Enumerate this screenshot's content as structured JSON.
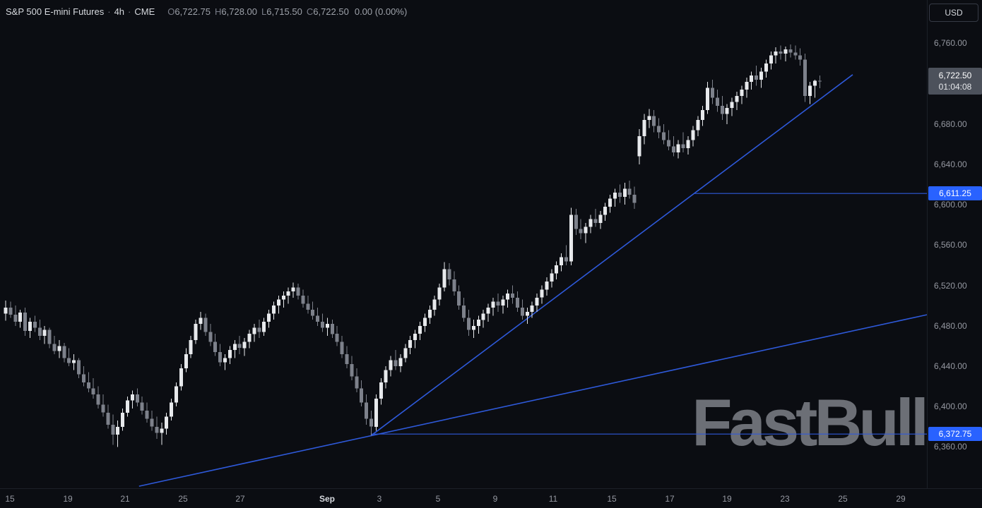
{
  "header": {
    "symbol": "S&P 500 E-mini Futures",
    "separator": "·",
    "interval": "4h",
    "exchange": "CME",
    "ohlc": {
      "o_label": "O",
      "o": "6,722.75",
      "h_label": "H",
      "h": "6,728.00",
      "l_label": "L",
      "l": "6,715.50",
      "c_label": "C",
      "c": "6,722.50",
      "change": "0.00 (0.00%)"
    },
    "currency_button": "USD"
  },
  "watermark": "FastBull",
  "chart_data": {
    "type": "candlestick",
    "title": "S&P 500 E-mini Futures · 4h · CME",
    "last_price": "6,722.50",
    "countdown": "01:04:08",
    "y_domain": [
      6319,
      6803
    ],
    "x_layout": {
      "offset": 8,
      "step": 6.9,
      "body_width": 5
    },
    "price_ticks": [
      6760,
      6720,
      6680,
      6640,
      6600,
      6560,
      6520,
      6480,
      6440,
      6400,
      6360
    ],
    "time_ticks": [
      {
        "label": "15",
        "x": 0.0107
      },
      {
        "label": "19",
        "x": 0.0732
      },
      {
        "label": "21",
        "x": 0.1349
      },
      {
        "label": "25",
        "x": 0.1974
      },
      {
        "label": "27",
        "x": 0.2591
      },
      {
        "label": "Sep",
        "x": 0.3529,
        "month": true
      },
      {
        "label": "3",
        "x": 0.4093
      },
      {
        "label": "5",
        "x": 0.4726
      },
      {
        "label": "9",
        "x": 0.5343
      },
      {
        "label": "11",
        "x": 0.5968
      },
      {
        "label": "15",
        "x": 0.6601
      },
      {
        "label": "17",
        "x": 0.7226
      },
      {
        "label": "19",
        "x": 0.7843
      },
      {
        "label": "23",
        "x": 0.8468
      },
      {
        "label": "25",
        "x": 0.9093
      },
      {
        "label": "29",
        "x": 0.9718
      }
    ],
    "price_labels": [
      {
        "name": "last-price-label",
        "style": "gray",
        "text": "6,722.50",
        "sub": "01:04:08",
        "price": 6722.5
      },
      {
        "name": "price-line-label-6611",
        "style": "blue",
        "text": "6,611.25",
        "price": 6611.25
      },
      {
        "name": "price-line-label-6372",
        "style": "blue",
        "text": "6,372.75",
        "price": 6372.75
      }
    ],
    "drawings": [
      {
        "name": "trendline-shallow",
        "x1": 0.15,
        "p1": 6321,
        "x2": 1.0,
        "p2": 6491
      },
      {
        "name": "trendline-steep",
        "x1": 0.4,
        "p1": 6371,
        "x2": 0.92,
        "p2": 6729
      },
      {
        "name": "horizontal-line-6611",
        "x1": 0.749,
        "p1": 6611.25,
        "x2": 1.0,
        "p2": 6611.25
      },
      {
        "name": "horizontal-line-6372",
        "x1": 0.4,
        "p1": 6372.75,
        "x2": 1.0,
        "p2": 6372.75
      }
    ],
    "colors": {
      "up": "#e7e9ec",
      "down": "#7d818b",
      "line": "#2e59d9",
      "label_blue": "#2962ff",
      "label_gray": "#4c515b",
      "background": "#0b0d12"
    },
    "candles": [
      [
        6492,
        6505,
        6485,
        6498
      ],
      [
        6498,
        6504,
        6488,
        6491
      ],
      [
        6491,
        6500,
        6480,
        6484
      ],
      [
        6484,
        6496,
        6478,
        6493
      ],
      [
        6493,
        6498,
        6470,
        6475
      ],
      [
        6475,
        6488,
        6468,
        6484
      ],
      [
        6484,
        6490,
        6474,
        6478
      ],
      [
        6478,
        6486,
        6466,
        6470
      ],
      [
        6470,
        6480,
        6462,
        6476
      ],
      [
        6476,
        6478,
        6458,
        6462
      ],
      [
        6462,
        6470,
        6452,
        6455
      ],
      [
        6455,
        6466,
        6448,
        6460
      ],
      [
        6460,
        6463,
        6444,
        6448
      ],
      [
        6448,
        6458,
        6440,
        6443
      ],
      [
        6443,
        6452,
        6436,
        6446
      ],
      [
        6446,
        6448,
        6428,
        6432
      ],
      [
        6432,
        6440,
        6420,
        6424
      ],
      [
        6424,
        6434,
        6414,
        6418
      ],
      [
        6418,
        6428,
        6408,
        6412
      ],
      [
        6412,
        6420,
        6398,
        6402
      ],
      [
        6402,
        6412,
        6390,
        6394
      ],
      [
        6394,
        6402,
        6378,
        6382
      ],
      [
        6382,
        6392,
        6362,
        6372
      ],
      [
        6372,
        6386,
        6360,
        6380
      ],
      [
        6380,
        6398,
        6376,
        6394
      ],
      [
        6394,
        6410,
        6390,
        6406
      ],
      [
        6406,
        6416,
        6398,
        6412
      ],
      [
        6412,
        6418,
        6400,
        6404
      ],
      [
        6404,
        6410,
        6392,
        6396
      ],
      [
        6396,
        6404,
        6384,
        6388
      ],
      [
        6388,
        6396,
        6376,
        6380
      ],
      [
        6380,
        6390,
        6368,
        6374
      ],
      [
        6374,
        6384,
        6362,
        6378
      ],
      [
        6378,
        6394,
        6372,
        6390
      ],
      [
        6390,
        6408,
        6386,
        6404
      ],
      [
        6404,
        6424,
        6400,
        6420
      ],
      [
        6420,
        6442,
        6416,
        6438
      ],
      [
        6438,
        6458,
        6434,
        6452
      ],
      [
        6452,
        6470,
        6448,
        6466
      ],
      [
        6466,
        6486,
        6462,
        6482
      ],
      [
        6482,
        6494,
        6476,
        6488
      ],
      [
        6488,
        6492,
        6470,
        6474
      ],
      [
        6474,
        6482,
        6460,
        6464
      ],
      [
        6464,
        6472,
        6450,
        6454
      ],
      [
        6454,
        6462,
        6440,
        6444
      ],
      [
        6444,
        6452,
        6436,
        6448
      ],
      [
        6448,
        6460,
        6442,
        6456
      ],
      [
        6456,
        6466,
        6448,
        6462
      ],
      [
        6462,
        6470,
        6452,
        6458
      ],
      [
        6458,
        6468,
        6450,
        6464
      ],
      [
        6464,
        6476,
        6458,
        6472
      ],
      [
        6472,
        6482,
        6464,
        6478
      ],
      [
        6478,
        6486,
        6468,
        6474
      ],
      [
        6474,
        6488,
        6470,
        6484
      ],
      [
        6484,
        6496,
        6478,
        6492
      ],
      [
        6492,
        6504,
        6486,
        6500
      ],
      [
        6500,
        6510,
        6492,
        6506
      ],
      [
        6506,
        6514,
        6498,
        6510
      ],
      [
        6510,
        6518,
        6502,
        6514
      ],
      [
        6514,
        6523,
        6508,
        6518
      ],
      [
        6518,
        6522,
        6506,
        6510
      ],
      [
        6510,
        6516,
        6498,
        6502
      ],
      [
        6502,
        6510,
        6492,
        6496
      ],
      [
        6496,
        6504,
        6486,
        6490
      ],
      [
        6490,
        6498,
        6480,
        6484
      ],
      [
        6484,
        6492,
        6474,
        6478
      ],
      [
        6478,
        6488,
        6470,
        6482
      ],
      [
        6482,
        6486,
        6468,
        6472
      ],
      [
        6472,
        6480,
        6460,
        6464
      ],
      [
        6464,
        6470,
        6448,
        6452
      ],
      [
        6452,
        6460,
        6438,
        6442
      ],
      [
        6442,
        6450,
        6426,
        6430
      ],
      [
        6430,
        6438,
        6414,
        6418
      ],
      [
        6418,
        6426,
        6400,
        6404
      ],
      [
        6404,
        6412,
        6382,
        6388
      ],
      [
        6388,
        6396,
        6371,
        6380
      ],
      [
        6380,
        6412,
        6376,
        6408
      ],
      [
        6408,
        6428,
        6402,
        6424
      ],
      [
        6424,
        6440,
        6418,
        6436
      ],
      [
        6436,
        6450,
        6430,
        6446
      ],
      [
        6446,
        6456,
        6436,
        6440
      ],
      [
        6440,
        6452,
        6434,
        6448
      ],
      [
        6448,
        6462,
        6444,
        6458
      ],
      [
        6458,
        6470,
        6452,
        6466
      ],
      [
        6466,
        6476,
        6458,
        6472
      ],
      [
        6472,
        6484,
        6466,
        6480
      ],
      [
        6480,
        6492,
        6474,
        6488
      ],
      [
        6488,
        6500,
        6482,
        6496
      ],
      [
        6496,
        6510,
        6490,
        6506
      ],
      [
        6506,
        6522,
        6500,
        6518
      ],
      [
        6518,
        6543,
        6514,
        6536
      ],
      [
        6536,
        6542,
        6520,
        6526
      ],
      [
        6526,
        6534,
        6510,
        6514
      ],
      [
        6514,
        6520,
        6496,
        6500
      ],
      [
        6500,
        6508,
        6484,
        6488
      ],
      [
        6488,
        6496,
        6470,
        6476
      ],
      [
        6476,
        6486,
        6468,
        6480
      ],
      [
        6480,
        6490,
        6472,
        6486
      ],
      [
        6486,
        6496,
        6478,
        6492
      ],
      [
        6492,
        6502,
        6484,
        6498
      ],
      [
        6498,
        6508,
        6490,
        6504
      ],
      [
        6504,
        6512,
        6494,
        6500
      ],
      [
        6500,
        6510,
        6492,
        6506
      ],
      [
        6506,
        6516,
        6498,
        6512
      ],
      [
        6512,
        6520,
        6502,
        6508
      ],
      [
        6508,
        6514,
        6494,
        6498
      ],
      [
        6498,
        6506,
        6486,
        6490
      ],
      [
        6490,
        6498,
        6482,
        6494
      ],
      [
        6494,
        6504,
        6488,
        6500
      ],
      [
        6500,
        6512,
        6494,
        6508
      ],
      [
        6508,
        6520,
        6502,
        6516
      ],
      [
        6516,
        6528,
        6510,
        6524
      ],
      [
        6524,
        6536,
        6518,
        6532
      ],
      [
        6532,
        6544,
        6526,
        6540
      ],
      [
        6540,
        6552,
        6534,
        6548
      ],
      [
        6548,
        6560,
        6540,
        6544
      ],
      [
        6544,
        6597,
        6540,
        6590
      ],
      [
        6590,
        6596,
        6570,
        6576
      ],
      [
        6576,
        6586,
        6566,
        6572
      ],
      [
        6572,
        6582,
        6562,
        6578
      ],
      [
        6578,
        6590,
        6572,
        6586
      ],
      [
        6586,
        6596,
        6578,
        6582
      ],
      [
        6582,
        6594,
        6576,
        6590
      ],
      [
        6590,
        6602,
        6584,
        6598
      ],
      [
        6598,
        6610,
        6592,
        6606
      ],
      [
        6606,
        6616,
        6598,
        6612
      ],
      [
        6612,
        6620,
        6602,
        6608
      ],
      [
        6608,
        6622,
        6600,
        6616
      ],
      [
        6616,
        6624,
        6606,
        6610
      ],
      [
        6610,
        6618,
        6596,
        6602
      ],
      [
        6648,
        6675,
        6640,
        6668
      ],
      [
        6668,
        6690,
        6660,
        6684
      ],
      [
        6684,
        6695,
        6676,
        6688
      ],
      [
        6688,
        6694,
        6672,
        6678
      ],
      [
        6678,
        6686,
        6666,
        6672
      ],
      [
        6672,
        6680,
        6660,
        6664
      ],
      [
        6664,
        6674,
        6654,
        6658
      ],
      [
        6658,
        6668,
        6648,
        6652
      ],
      [
        6652,
        6664,
        6646,
        6660
      ],
      [
        6660,
        6672,
        6652,
        6656
      ],
      [
        6656,
        6668,
        6650,
        6664
      ],
      [
        6664,
        6678,
        6658,
        6674
      ],
      [
        6674,
        6688,
        6668,
        6684
      ],
      [
        6684,
        6698,
        6678,
        6694
      ],
      [
        6694,
        6722,
        6690,
        6716
      ],
      [
        6716,
        6724,
        6700,
        6706
      ],
      [
        6706,
        6714,
        6692,
        6698
      ],
      [
        6698,
        6708,
        6684,
        6690
      ],
      [
        6690,
        6700,
        6680,
        6696
      ],
      [
        6696,
        6706,
        6688,
        6702
      ],
      [
        6702,
        6712,
        6694,
        6708
      ],
      [
        6708,
        6718,
        6700,
        6714
      ],
      [
        6714,
        6726,
        6706,
        6722
      ],
      [
        6722,
        6732,
        6714,
        6728
      ],
      [
        6728,
        6738,
        6718,
        6724
      ],
      [
        6724,
        6736,
        6716,
        6732
      ],
      [
        6732,
        6744,
        6726,
        6740
      ],
      [
        6740,
        6752,
        6734,
        6748
      ],
      [
        6748,
        6756,
        6740,
        6752
      ],
      [
        6752,
        6758,
        6744,
        6750
      ],
      [
        6750,
        6757,
        6742,
        6754
      ],
      [
        6754,
        6759,
        6746,
        6751
      ],
      [
        6751,
        6758,
        6744,
        6748
      ],
      [
        6748,
        6755,
        6738,
        6744
      ],
      [
        6744,
        6750,
        6702,
        6708
      ],
      [
        6708,
        6722,
        6700,
        6718
      ],
      [
        6718,
        6724,
        6706,
        6722.75
      ],
      [
        6722.75,
        6728,
        6715.5,
        6722.5
      ]
    ]
  }
}
